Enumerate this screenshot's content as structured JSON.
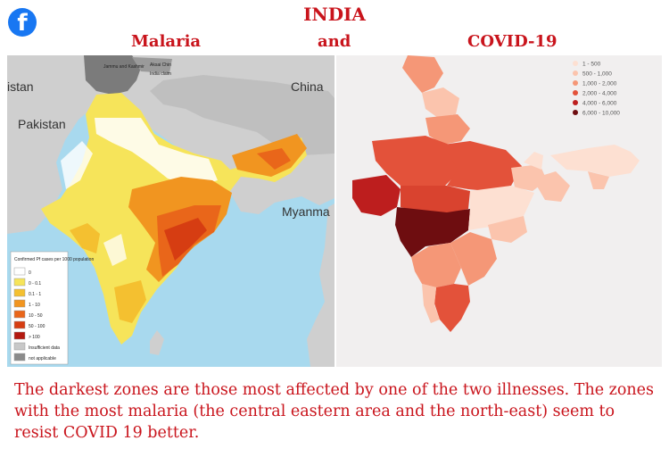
{
  "header": {
    "title": "INDIA",
    "left_label": "Malaria",
    "conjunction": "and",
    "right_label": "COVID-19",
    "social_icon": "facebook-icon"
  },
  "malaria_map": {
    "place_labels": [
      "istan",
      "China",
      "Pakistan",
      "Myanma"
    ],
    "small_labels": [
      "Jammu and Kashmir",
      "Aksai Chin",
      "India claim"
    ],
    "legend": {
      "title": "Confirmed Pf cases per 1000 population",
      "items": [
        {
          "label": "0",
          "color": "#ffffff"
        },
        {
          "label": "0 - 0.1",
          "color": "#f6e45a"
        },
        {
          "label": "0.1 - 1",
          "color": "#f4c030"
        },
        {
          "label": "1 - 10",
          "color": "#f19520"
        },
        {
          "label": "10 - 50",
          "color": "#e9661a"
        },
        {
          "label": "50 - 100",
          "color": "#d63d12"
        },
        {
          "label": "> 100",
          "color": "#b3190f"
        },
        {
          "label": "Insufficient data",
          "color": "#c8c8c8"
        },
        {
          "label": "not applicable",
          "color": "#8a8a8a"
        }
      ]
    },
    "colors": {
      "sea": "#a8d9ee",
      "land": "#cfcfcf",
      "dark_land": "#7b7b7b"
    }
  },
  "covid_map": {
    "legend": [
      {
        "label": "1 - 500",
        "color": "#fde0d2"
      },
      {
        "label": "500 - 1,000",
        "color": "#fbc4ad"
      },
      {
        "label": "1,000 - 2,000",
        "color": "#f59777"
      },
      {
        "label": "2,000 - 4,000",
        "color": "#e3523a"
      },
      {
        "label": "4,000 - 6,000",
        "color": "#bd1e1e"
      },
      {
        "label": "6,000 - 10,000",
        "color": "#6e0d10"
      }
    ],
    "background": "#f1efef"
  },
  "caption": "The darkest zones are those most affected by one of the two illnesses. The zones with the most malaria (the central eastern area and the north-east) seem to resist COVID 19 better."
}
